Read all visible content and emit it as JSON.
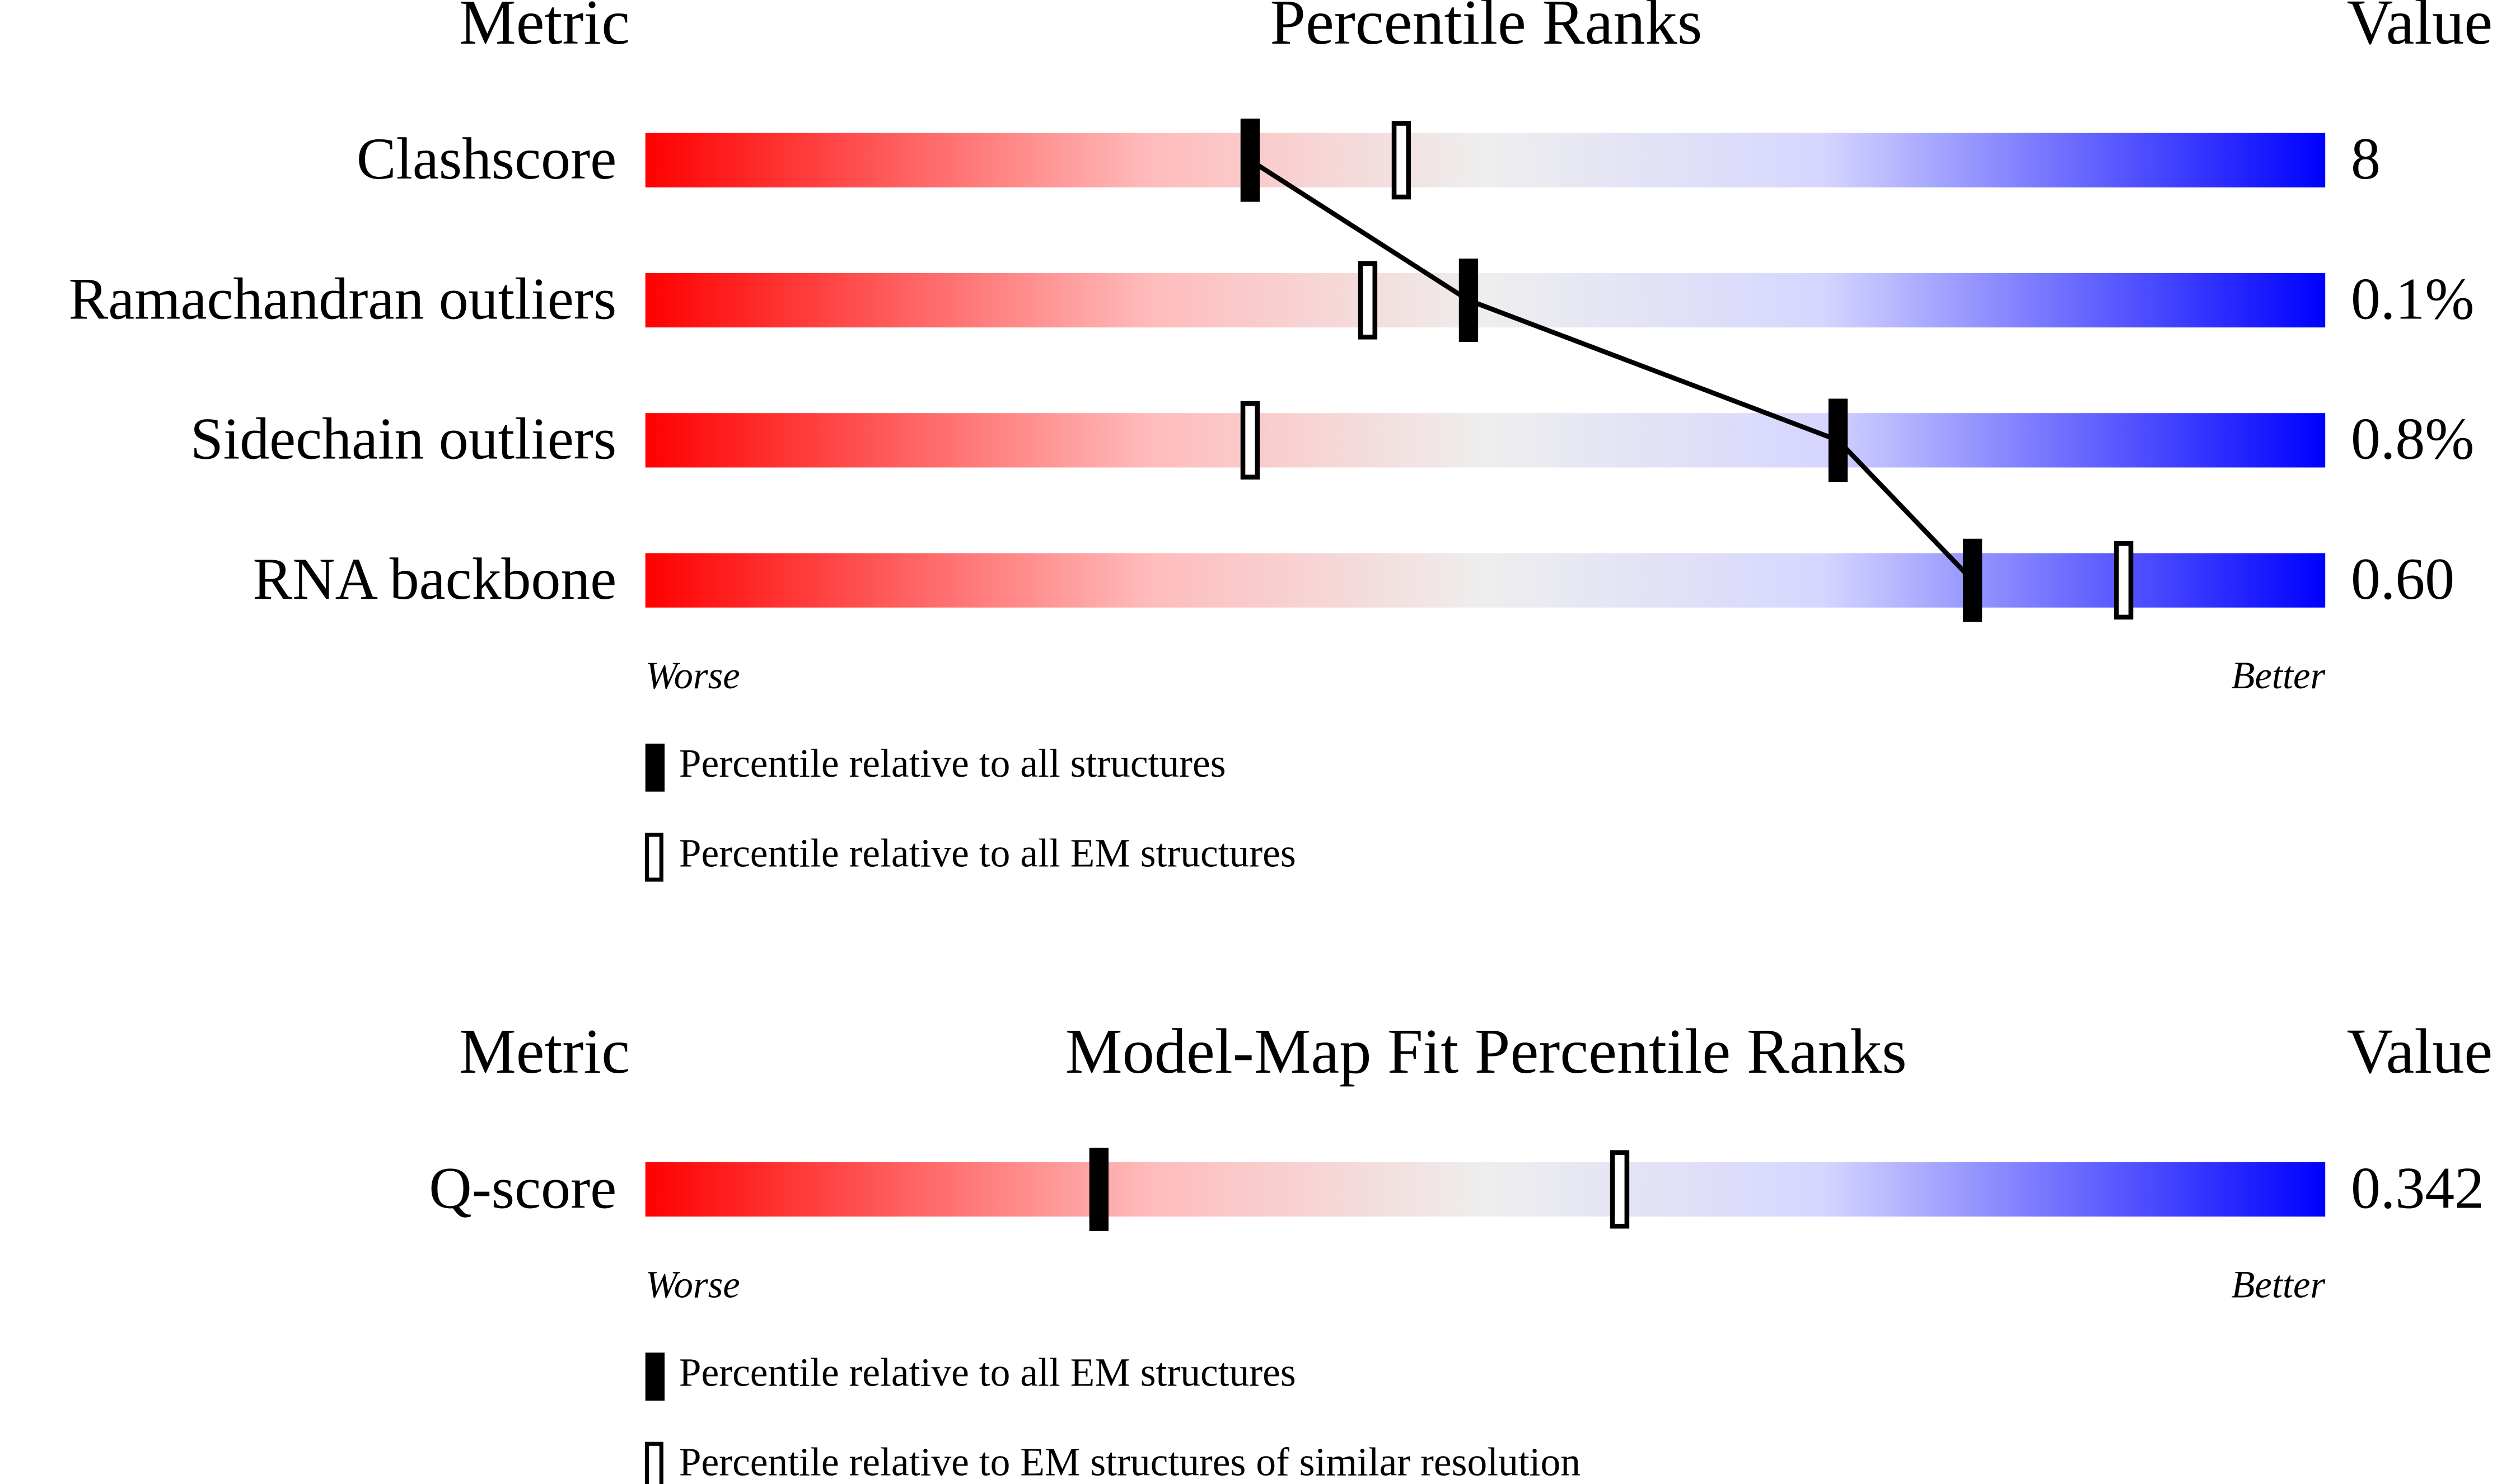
{
  "chart_data": [
    {
      "type": "percentile-slider",
      "header_metric": "Metric",
      "title": "Percentile Ranks",
      "header_value": "Value",
      "xlim": [
        0,
        100
      ],
      "low_label": "Worse",
      "high_label": "Better",
      "connect": true,
      "categories": [
        "Clashscore",
        "Ramachandran outliers",
        "Sidechain outliers",
        "RNA backbone"
      ],
      "metric_values": [
        "8",
        "0.1%",
        "0.8%",
        "0.60"
      ],
      "series": [
        {
          "name": "Percentile relative to all structures",
          "style": "filled",
          "color": "#000000",
          "values": [
            36,
            49,
            71,
            79
          ]
        },
        {
          "name": "Percentile relative to all EM structures",
          "style": "open",
          "color": "#000000",
          "values": [
            45,
            43,
            36,
            88
          ]
        }
      ]
    },
    {
      "type": "percentile-slider",
      "header_metric": "Metric",
      "title": "Model-Map Fit Percentile Ranks",
      "header_value": "Value",
      "xlim": [
        0,
        100
      ],
      "low_label": "Worse",
      "high_label": "Better",
      "connect": false,
      "categories": [
        "Q-score"
      ],
      "metric_values": [
        "0.342"
      ],
      "series": [
        {
          "name": "Percentile relative to all EM structures",
          "style": "filled",
          "color": "#000000",
          "values": [
            27
          ]
        },
        {
          "name": "Percentile relative to EM structures of similar resolution",
          "style": "open",
          "color": "#000000",
          "values": [
            58
          ]
        }
      ]
    }
  ]
}
